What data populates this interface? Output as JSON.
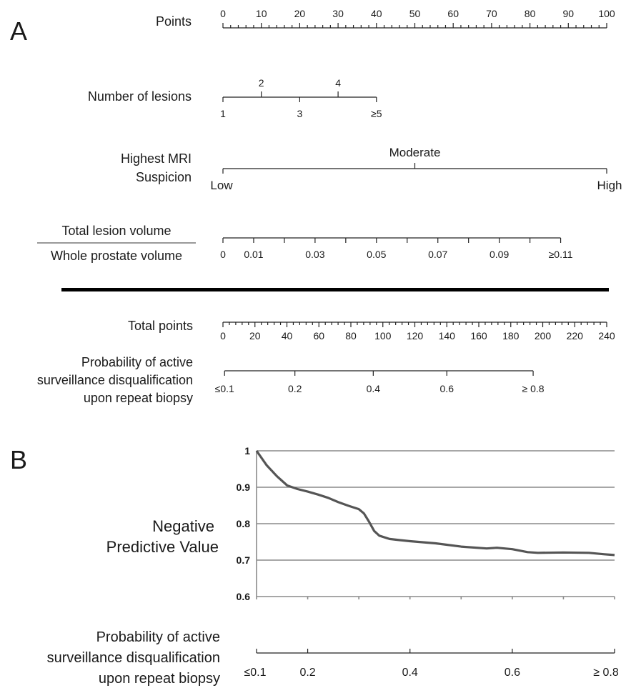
{
  "chart_data": [
    {
      "type": "nomogram",
      "panel_label": "A",
      "rows": [
        {
          "key": "points",
          "label": "Points",
          "range": [
            0,
            100
          ],
          "labeled_ticks": [
            "0",
            "10",
            "20",
            "30",
            "40",
            "50",
            "60",
            "70",
            "80",
            "90",
            "100"
          ],
          "minor_step": 2
        },
        {
          "key": "lesions",
          "label": "Number of lesions",
          "categories": [
            {
              "label": "1",
              "points": 0
            },
            {
              "label": "2",
              "points": 10
            },
            {
              "label": "3",
              "points": 20
            },
            {
              "label": "4",
              "points": 30
            },
            {
              "label": "≥5",
              "points": 40
            }
          ]
        },
        {
          "key": "mri",
          "label_lines": [
            "Highest MRI",
            "Suspicion"
          ],
          "categories": [
            {
              "label": "Low",
              "points": 0
            },
            {
              "label": "Moderate",
              "points": 50
            },
            {
              "label": "High",
              "points": 100
            }
          ]
        },
        {
          "key": "ratio",
          "label_numerator": "Total lesion volume",
          "label_denominator": "Whole prostate volume",
          "values": [
            0,
            0.01,
            0.02,
            0.03,
            0.04,
            0.05,
            0.06,
            0.07,
            0.08,
            0.09,
            0.1,
            0.11
          ],
          "labeled": [
            "0",
            "0.01",
            "0.03",
            "0.05",
            "0.07",
            "0.09",
            "≥0.11"
          ],
          "points_at_max": 88
        },
        {
          "key": "total",
          "label": "Total points",
          "range": [
            0,
            240
          ],
          "labeled_ticks": [
            "0",
            "20",
            "40",
            "60",
            "80",
            "100",
            "120",
            "140",
            "160",
            "180",
            "200",
            "220",
            "240"
          ],
          "minor_step": 4
        },
        {
          "key": "prob",
          "label_lines": [
            "Probability of active",
            "surveillance disqualification",
            "upon repeat biopsy"
          ],
          "ticks": [
            {
              "label": "≤0.1",
              "total_points": 1
            },
            {
              "label": "0.2",
              "total_points": 45
            },
            {
              "label": "0.4",
              "total_points": 94
            },
            {
              "label": "0.6",
              "total_points": 140
            },
            {
              "label": "≥ 0.8",
              "total_points": 194
            }
          ]
        }
      ]
    },
    {
      "type": "line",
      "panel_label": "B",
      "ylabel_lines": [
        "Negative",
        "Predictive Value"
      ],
      "ylim": [
        0.6,
        1.0
      ],
      "yticks": [
        "0.6",
        "0.7",
        "0.8",
        "0.9",
        "1"
      ],
      "grid": true,
      "xlim": [
        0.1,
        0.8
      ],
      "xlabel_lines": [
        "Probability of active",
        "surveillance disqualification",
        "upon repeat biopsy"
      ],
      "xticks": [
        {
          "label": "≤0.1",
          "value": 0.1
        },
        {
          "label": "0.2",
          "value": 0.2
        },
        {
          "label": "0.4",
          "value": 0.4
        },
        {
          "label": "0.6",
          "value": 0.6
        },
        {
          "label": "≥ 0.8",
          "value": 0.8
        }
      ],
      "series": [
        {
          "x": [
            0.1,
            0.12,
            0.14,
            0.16,
            0.18,
            0.2,
            0.22,
            0.24,
            0.26,
            0.28,
            0.3,
            0.31,
            0.32,
            0.33,
            0.34,
            0.36,
            0.38,
            0.4,
            0.45,
            0.5,
            0.55,
            0.57,
            0.6,
            0.63,
            0.65,
            0.7,
            0.75,
            0.78,
            0.8
          ],
          "y": [
            1.0,
            0.96,
            0.93,
            0.905,
            0.895,
            0.888,
            0.88,
            0.871,
            0.859,
            0.849,
            0.84,
            0.828,
            0.805,
            0.78,
            0.767,
            0.758,
            0.755,
            0.752,
            0.746,
            0.737,
            0.732,
            0.734,
            0.73,
            0.722,
            0.72,
            0.721,
            0.72,
            0.716,
            0.714
          ]
        }
      ]
    }
  ]
}
